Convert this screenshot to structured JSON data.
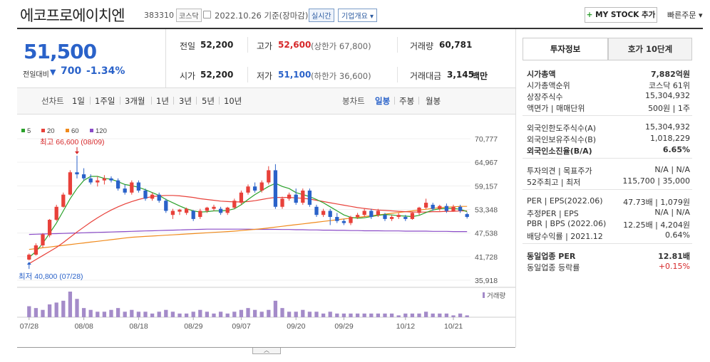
{
  "header": {
    "company_name": "에코프로에이치엔",
    "code": "383310",
    "market": "코스닥",
    "date_text": "2022.10.26 기준(장마감)",
    "realtime_label": "실시간",
    "overview_label": "기업개요 ▾",
    "mystock_label": "MY STOCK 추가",
    "quick_order_label": "빠른주문 ▾"
  },
  "price": {
    "current": "51,500",
    "change_label": "전일대비",
    "change_arrow": "▼",
    "change_amount": "700",
    "change_rate": "-1.34%"
  },
  "stats": {
    "prev_label": "전일",
    "prev_value": "52,200",
    "high_label": "고가",
    "high_value": "52,600",
    "upper_limit": "(상한가 67,800)",
    "volume_label": "거래량",
    "volume_value": "60,781",
    "open_label": "시가",
    "open_value": "52,200",
    "low_label": "저가",
    "low_value": "51,100",
    "lower_limit": "(하한가 36,600)",
    "amount_label": "거래대금",
    "amount_value": "3,145",
    "amount_unit": "백만"
  },
  "periods": {
    "line_chart": "선차트",
    "items": [
      "1일",
      "1주일",
      "3개월",
      "1년",
      "3년",
      "5년",
      "10년"
    ],
    "candle_chart": "봉차트",
    "candle_items": [
      "일봉",
      "주봉",
      "월봉"
    ]
  },
  "chart_data": {
    "type": "candlestick",
    "legend": [
      {
        "name": "5",
        "color": "#2aa12a"
      },
      {
        "name": "20",
        "color": "#e8413a"
      },
      {
        "name": "60",
        "color": "#f08a1c"
      },
      {
        "name": "120",
        "color": "#8a4bc7"
      }
    ],
    "y_ticks": [
      "70,777",
      "64,967",
      "59,157",
      "53,348",
      "47,538",
      "41,728",
      "35,918"
    ],
    "ylim": [
      35918,
      70777
    ],
    "x_ticks": [
      "07/28",
      "08/08",
      "08/18",
      "08/29",
      "09/07",
      "09/20",
      "09/29",
      "10/12",
      "10/21"
    ],
    "high_annotation": "최고 66,600 (08/09)",
    "low_annotation": "최저 40,800 (07/28)",
    "volume_label": "거래량",
    "candles": [
      {
        "o": 41000,
        "h": 42500,
        "l": 40800,
        "c": 42200
      },
      {
        "o": 42200,
        "h": 45000,
        "l": 42000,
        "c": 44500
      },
      {
        "o": 44500,
        "h": 47500,
        "l": 44000,
        "c": 47200
      },
      {
        "o": 47000,
        "h": 51000,
        "l": 46500,
        "c": 50800
      },
      {
        "o": 50800,
        "h": 54500,
        "l": 50500,
        "c": 54000
      },
      {
        "o": 54000,
        "h": 57500,
        "l": 53800,
        "c": 57000
      },
      {
        "o": 57000,
        "h": 63000,
        "l": 56800,
        "c": 62500
      },
      {
        "o": 62500,
        "h": 66600,
        "l": 61000,
        "c": 62000
      },
      {
        "o": 62000,
        "h": 63500,
        "l": 60500,
        "c": 61000
      },
      {
        "o": 61000,
        "h": 62000,
        "l": 59500,
        "c": 60000
      },
      {
        "o": 60000,
        "h": 61500,
        "l": 59000,
        "c": 60500
      },
      {
        "o": 60500,
        "h": 61800,
        "l": 59500,
        "c": 61000
      },
      {
        "o": 61000,
        "h": 61500,
        "l": 60000,
        "c": 60500
      },
      {
        "o": 60500,
        "h": 61000,
        "l": 58000,
        "c": 58500
      },
      {
        "o": 58500,
        "h": 59500,
        "l": 57000,
        "c": 57500
      },
      {
        "o": 57500,
        "h": 60500,
        "l": 57000,
        "c": 60000
      },
      {
        "o": 60000,
        "h": 60500,
        "l": 57500,
        "c": 58000
      },
      {
        "o": 58000,
        "h": 58500,
        "l": 55500,
        "c": 56000
      },
      {
        "o": 56000,
        "h": 57500,
        "l": 55500,
        "c": 57000
      },
      {
        "o": 57000,
        "h": 57500,
        "l": 55000,
        "c": 55500
      },
      {
        "o": 55500,
        "h": 56000,
        "l": 52500,
        "c": 53000
      },
      {
        "o": 52000,
        "h": 53500,
        "l": 51000,
        "c": 53000
      },
      {
        "o": 52800,
        "h": 53500,
        "l": 52000,
        "c": 53300
      },
      {
        "o": 52500,
        "h": 53800,
        "l": 52000,
        "c": 53500
      },
      {
        "o": 53000,
        "h": 53200,
        "l": 50500,
        "c": 51000
      },
      {
        "o": 51500,
        "h": 53500,
        "l": 51000,
        "c": 53000
      },
      {
        "o": 53000,
        "h": 54000,
        "l": 52500,
        "c": 53800
      },
      {
        "o": 53500,
        "h": 54500,
        "l": 53000,
        "c": 54000
      },
      {
        "o": 53500,
        "h": 54000,
        "l": 52000,
        "c": 52500
      },
      {
        "o": 52500,
        "h": 54000,
        "l": 52000,
        "c": 53800
      },
      {
        "o": 53800,
        "h": 56000,
        "l": 53500,
        "c": 55500
      },
      {
        "o": 55000,
        "h": 58000,
        "l": 54500,
        "c": 57500
      },
      {
        "o": 57500,
        "h": 59500,
        "l": 57000,
        "c": 59000
      },
      {
        "o": 59000,
        "h": 60000,
        "l": 57500,
        "c": 58000
      },
      {
        "o": 58000,
        "h": 60500,
        "l": 57500,
        "c": 60000
      },
      {
        "o": 60000,
        "h": 64000,
        "l": 59500,
        "c": 63000
      },
      {
        "o": 63000,
        "h": 64500,
        "l": 53500,
        "c": 54000
      },
      {
        "o": 54000,
        "h": 56500,
        "l": 53500,
        "c": 56000
      },
      {
        "o": 56000,
        "h": 57500,
        "l": 55500,
        "c": 57000
      },
      {
        "o": 57000,
        "h": 58500,
        "l": 54500,
        "c": 55000
      },
      {
        "o": 55000,
        "h": 58500,
        "l": 54500,
        "c": 58000
      },
      {
        "o": 58000,
        "h": 58500,
        "l": 54000,
        "c": 54500
      },
      {
        "o": 54000,
        "h": 54500,
        "l": 51500,
        "c": 52000
      },
      {
        "o": 52000,
        "h": 53500,
        "l": 51500,
        "c": 53000
      },
      {
        "o": 53000,
        "h": 53500,
        "l": 49500,
        "c": 51500
      },
      {
        "o": 51500,
        "h": 52500,
        "l": 50000,
        "c": 50500
      },
      {
        "o": 50500,
        "h": 51000,
        "l": 49500,
        "c": 50000
      },
      {
        "o": 50000,
        "h": 51800,
        "l": 49500,
        "c": 51500
      },
      {
        "o": 51500,
        "h": 52500,
        "l": 51000,
        "c": 52000
      },
      {
        "o": 52000,
        "h": 53500,
        "l": 51500,
        "c": 53000
      },
      {
        "o": 53000,
        "h": 53500,
        "l": 51000,
        "c": 51500
      },
      {
        "o": 52000,
        "h": 53500,
        "l": 51500,
        "c": 53000
      },
      {
        "o": 52000,
        "h": 52500,
        "l": 50500,
        "c": 51000
      },
      {
        "o": 51000,
        "h": 52000,
        "l": 50500,
        "c": 51500
      },
      {
        "o": 51500,
        "h": 52500,
        "l": 51000,
        "c": 52000
      },
      {
        "o": 51500,
        "h": 52000,
        "l": 50500,
        "c": 51000
      },
      {
        "o": 51000,
        "h": 52800,
        "l": 50800,
        "c": 52500
      },
      {
        "o": 52500,
        "h": 54000,
        "l": 52000,
        "c": 53800
      },
      {
        "o": 53800,
        "h": 56000,
        "l": 53500,
        "c": 55000
      },
      {
        "o": 54500,
        "h": 55000,
        "l": 53000,
        "c": 53500
      },
      {
        "o": 53500,
        "h": 54500,
        "l": 53000,
        "c": 54200
      },
      {
        "o": 54200,
        "h": 54800,
        "l": 52500,
        "c": 53000
      },
      {
        "o": 53000,
        "h": 54500,
        "l": 52800,
        "c": 54000
      },
      {
        "o": 54000,
        "h": 54500,
        "l": 52500,
        "c": 53000
      },
      {
        "o": 52200,
        "h": 52600,
        "l": 51100,
        "c": 51500
      }
    ],
    "ma5": [
      41500,
      43000,
      45000,
      47500,
      50000,
      53000,
      56000,
      58500,
      60500,
      61500,
      61500,
      61000,
      60800,
      60200,
      59500,
      59200,
      58800,
      58200,
      57500,
      56800,
      55800,
      55000,
      54200,
      53500,
      53000,
      52700,
      52800,
      53000,
      53000,
      53100,
      53500,
      54500,
      55800,
      57000,
      58000,
      59000,
      59800,
      59000,
      58500,
      57500,
      57000,
      56500,
      55800,
      55000,
      54000,
      53000,
      52000,
      51400,
      51200,
      51300,
      51600,
      51900,
      52100,
      52000,
      51800,
      51700,
      51600,
      51900,
      52600,
      53200,
      53500,
      53600,
      53600,
      53400,
      52800
    ],
    "ma20": [
      40000,
      41000,
      42000,
      43000,
      44000,
      45200,
      46500,
      47800,
      49000,
      50200,
      51300,
      52300,
      53200,
      54000,
      54700,
      55300,
      55800,
      56200,
      56500,
      56700,
      56800,
      56800,
      56700,
      56500,
      56300,
      56000,
      55800,
      55600,
      55400,
      55300,
      55200,
      55200,
      55300,
      55500,
      55800,
      56100,
      56300,
      56300,
      56300,
      56200,
      56100,
      55900,
      55600,
      55300,
      55000,
      54700,
      54400,
      54100,
      53800,
      53600,
      53400,
      53200,
      53100,
      53000,
      52900,
      52800,
      52700,
      52700,
      52700,
      52800,
      52800,
      52900,
      52900,
      53000,
      53000
    ],
    "ma60": [
      43500,
      43700,
      43900,
      44100,
      44300,
      44500,
      44700,
      44900,
      45100,
      45300,
      45500,
      45700,
      45900,
      46100,
      46300,
      46500,
      46600,
      46700,
      46800,
      46900,
      47000,
      47100,
      47200,
      47300,
      47400,
      47500,
      47600,
      47700,
      47800,
      47900,
      48000,
      48150,
      48300,
      48450,
      48600,
      48800,
      49000,
      49200,
      49400,
      49600,
      49800,
      50000,
      50200,
      50400,
      50600,
      50800,
      51000,
      51200,
      51400,
      51600,
      51800,
      52000,
      52200,
      52400,
      52600,
      52800,
      53000,
      53200,
      53400,
      53600,
      53800,
      53900,
      54000,
      54100,
      54100
    ],
    "ma120": [
      47200,
      47250,
      47300,
      47350,
      47400,
      47450,
      47500,
      47550,
      47600,
      47650,
      47700,
      47750,
      47800,
      47850,
      47900,
      47950,
      48000,
      48050,
      48100,
      48150,
      48200,
      48250,
      48300,
      48350,
      48400,
      48450,
      48500,
      48500,
      48500,
      48500,
      48500,
      48500,
      48500,
      48450,
      48450,
      48450,
      48450,
      48400,
      48400,
      48350,
      48350,
      48300,
      48300,
      48250,
      48250,
      48200,
      48200,
      48150,
      48150,
      48100,
      48100,
      48100,
      48050,
      48050,
      48050,
      48000,
      48000,
      48000,
      48000,
      47950,
      47950,
      47950,
      47900,
      47900,
      47900
    ],
    "volumes": [
      6,
      5,
      4,
      7,
      8,
      9,
      14,
      10,
      5,
      4,
      3,
      3,
      4,
      5,
      3,
      4,
      3,
      3,
      2,
      3,
      4,
      3,
      2,
      2,
      3,
      4,
      3,
      2,
      3,
      2,
      3,
      4,
      5,
      4,
      3,
      4,
      9,
      5,
      3,
      3,
      4,
      3,
      3,
      2,
      3,
      2,
      2,
      2,
      2,
      2,
      2,
      2,
      2,
      2,
      1,
      2,
      2,
      2,
      3,
      2,
      2,
      2,
      1,
      2,
      1
    ]
  },
  "right": {
    "tab_invest": "투자정보",
    "tab_hoga": "호가 10단계",
    "rows1": [
      {
        "label": "시가총액",
        "value": "7,882억원"
      },
      {
        "label": "시가총액순위",
        "value": "코스닥 61위"
      },
      {
        "label": "상장주식수",
        "value": "15,304,932"
      },
      {
        "label": "액면가 | 매매단위",
        "value": "500원 | 1주"
      }
    ],
    "rows2": [
      {
        "label": "외국인한도주식수(A)",
        "value": "15,304,932"
      },
      {
        "label": "외국인보유주식수(B)",
        "value": "1,018,229"
      },
      {
        "label": "외국인소진율(B/A)",
        "value": "6.65%"
      }
    ],
    "rows3": [
      {
        "label": "투자의견 | 목표주가",
        "value": "N/A | N/A"
      },
      {
        "label": "52주최고 | 최저",
        "value": "115,700 | 35,000"
      }
    ],
    "rows4": [
      {
        "label": "PER | EPS(2022.06)",
        "value": "47.73배 | 1,079원"
      },
      {
        "label": "추정PER | EPS",
        "value": "N/A | N/A"
      },
      {
        "label": "PBR | BPS (2022.06)",
        "value": "12.25배 | 4,204원"
      },
      {
        "label": "배당수익률 | 2021.12",
        "value": "0.64%"
      }
    ],
    "rows5": [
      {
        "label": "동일업종 PER",
        "value": "12.81배"
      },
      {
        "label": "동일업종 등락률",
        "value": "+0.15%"
      }
    ]
  }
}
